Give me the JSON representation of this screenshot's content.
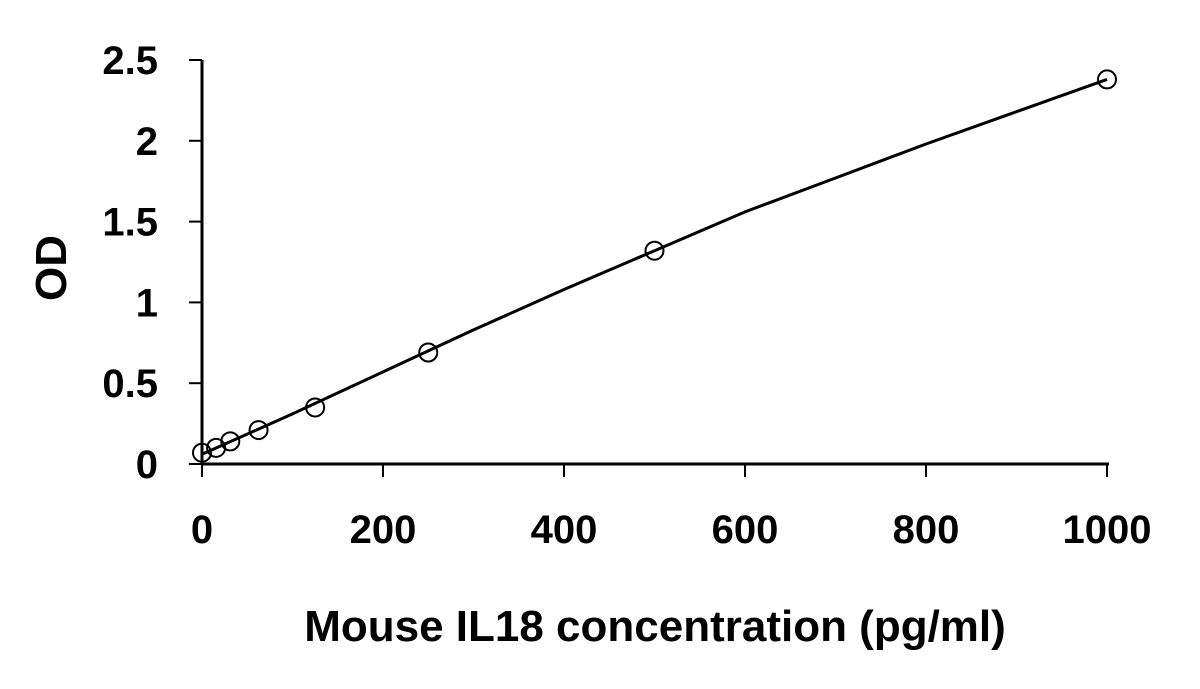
{
  "chart_data": {
    "type": "scatter",
    "title": "",
    "xlabel": "Mouse IL18 concentration (pg/ml)",
    "ylabel": "OD",
    "xlim": [
      0,
      1000
    ],
    "ylim": [
      0,
      2.5
    ],
    "x_ticks": [
      "0",
      "200",
      "400",
      "600",
      "800",
      "1000"
    ],
    "y_ticks": [
      "0",
      "0.5",
      "1",
      "1.5",
      "2",
      "2.5"
    ],
    "grid": false,
    "legend": "none",
    "series": [
      {
        "marker": "open-circle",
        "color": "#000000",
        "points": [
          {
            "x": 0,
            "y": 0.07
          },
          {
            "x": 15.6,
            "y": 0.1
          },
          {
            "x": 31.25,
            "y": 0.14
          },
          {
            "x": 62.5,
            "y": 0.21
          },
          {
            "x": 125,
            "y": 0.35
          },
          {
            "x": 250,
            "y": 0.69
          },
          {
            "x": 500,
            "y": 1.32
          },
          {
            "x": 1000,
            "y": 2.38
          }
        ]
      }
    ],
    "fit_line": {
      "color": "#000000",
      "points": [
        {
          "x": 0,
          "y": 0.06
        },
        {
          "x": 100,
          "y": 0.31
        },
        {
          "x": 200,
          "y": 0.57
        },
        {
          "x": 300,
          "y": 0.83
        },
        {
          "x": 400,
          "y": 1.08
        },
        {
          "x": 500,
          "y": 1.32
        },
        {
          "x": 600,
          "y": 1.56
        },
        {
          "x": 700,
          "y": 1.77
        },
        {
          "x": 800,
          "y": 1.98
        },
        {
          "x": 900,
          "y": 2.18
        },
        {
          "x": 1000,
          "y": 2.38
        }
      ]
    }
  }
}
